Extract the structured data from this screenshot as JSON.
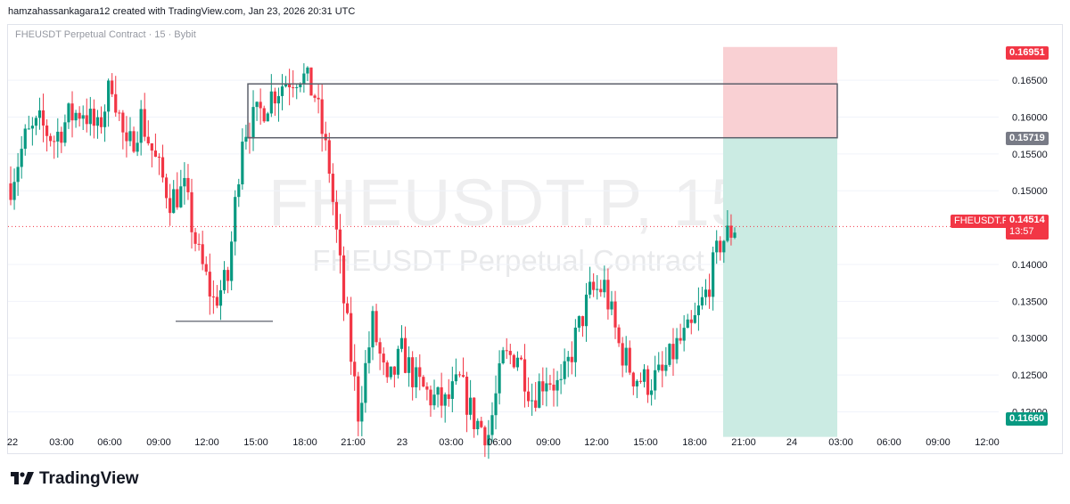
{
  "header": {
    "credit": "hamzahassankagara12 created with TradingView.com, Jan 23, 2026 20:31 UTC"
  },
  "legend": {
    "symbol": "FHEUSDT Perpetual Contract · 15 · Bybit"
  },
  "watermark": {
    "ticker": "FHEUSDT.P, 15",
    "name": "FHEUSDT Perpetual Contract"
  },
  "price_tags": {
    "stop": "0.16951",
    "entry": "0.15719",
    "target": "0.11660",
    "symbol": "FHEUSDT.P",
    "current": "0.14514",
    "countdown": "13:57"
  },
  "footer": {
    "brand": "TradingView"
  },
  "colors": {
    "up": "#089981",
    "down": "#f23645",
    "stop_zone": "#f9d0d3",
    "target_zone": "#cbebe3",
    "rect": "#5d606b"
  },
  "chart_data": {
    "type": "candlestick",
    "y_axis": {
      "ticks": [
        "0.16500",
        "0.16000",
        "0.15500",
        "0.15000",
        "0.14000",
        "0.13500",
        "0.13000",
        "0.12500",
        "0.12000"
      ],
      "range": [
        0.1145,
        0.1725
      ]
    },
    "x_axis": {
      "ticks": [
        "22",
        "03:00",
        "06:00",
        "09:00",
        "12:00",
        "15:00",
        "18:00",
        "21:00",
        "23",
        "03:00",
        "06:00",
        "09:00",
        "12:00",
        "15:00",
        "18:00",
        "21:00",
        "24",
        "03:00",
        "06:00",
        "09:00",
        "12:00"
      ]
    },
    "current_price": 0.14514,
    "position": {
      "type": "short",
      "entry": 0.15719,
      "stop": 0.16951,
      "target": 0.1166
    },
    "anchors": [
      [
        0.151,
        0.152
      ],
      [
        0.157,
        0.156
      ],
      [
        0.159,
        0.161
      ],
      [
        0.157,
        0.157
      ],
      [
        0.16,
        0.16
      ],
      [
        0.161,
        0.161
      ],
      [
        0.158,
        0.158
      ],
      [
        0.165,
        0.165
      ],
      [
        0.155,
        0.155
      ],
      [
        0.16,
        0.16
      ],
      [
        0.154,
        0.154
      ],
      [
        0.149,
        0.149
      ],
      [
        0.15,
        0.15
      ],
      [
        0.141,
        0.141
      ],
      [
        0.135,
        0.135
      ],
      [
        0.138,
        0.138
      ],
      [
        0.158,
        0.158
      ],
      [
        0.16,
        0.16
      ],
      [
        0.163,
        0.163
      ],
      [
        0.165,
        0.165
      ],
      [
        0.166,
        0.166
      ],
      [
        0.163,
        0.163
      ],
      [
        0.153,
        0.153
      ],
      [
        0.135,
        0.135
      ],
      [
        0.12,
        0.12
      ],
      [
        0.132,
        0.132
      ],
      [
        0.123,
        0.123
      ],
      [
        0.128,
        0.128
      ],
      [
        0.124,
        0.124
      ],
      [
        0.122,
        0.122
      ],
      [
        0.121,
        0.121
      ],
      [
        0.124,
        0.124
      ],
      [
        0.119,
        0.119
      ],
      [
        0.117,
        0.117
      ],
      [
        0.127,
        0.127
      ],
      [
        0.128,
        0.128
      ],
      [
        0.122,
        0.122
      ],
      [
        0.125,
        0.125
      ],
      [
        0.123,
        0.123
      ],
      [
        0.13,
        0.13
      ],
      [
        0.136,
        0.136
      ],
      [
        0.137,
        0.137
      ],
      [
        0.129,
        0.129
      ],
      [
        0.125,
        0.125
      ],
      [
        0.124,
        0.124
      ],
      [
        0.125,
        0.125
      ],
      [
        0.129,
        0.129
      ],
      [
        0.131,
        0.131
      ],
      [
        0.136,
        0.136
      ],
      [
        0.143,
        0.143
      ],
      [
        0.145,
        0.145
      ]
    ]
  }
}
